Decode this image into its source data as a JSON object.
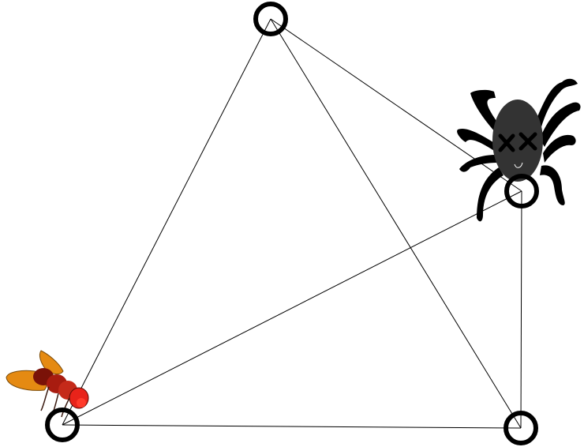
{
  "game": {
    "nodes": [
      {
        "id": "n0",
        "name": "node-top"
      },
      {
        "id": "n1",
        "name": "node-bottom-left"
      },
      {
        "id": "n2",
        "name": "node-bottom-right"
      },
      {
        "id": "n3",
        "name": "node-right"
      }
    ],
    "edges": [
      [
        "n0",
        "n1"
      ],
      [
        "n0",
        "n2"
      ],
      [
        "n0",
        "n3"
      ],
      [
        "n1",
        "n2"
      ],
      [
        "n1",
        "n3"
      ],
      [
        "n3",
        "n2"
      ]
    ],
    "pieces": {
      "fly": {
        "name": "fly-piece",
        "on_node": "n1",
        "icon": "fly-icon"
      },
      "spider": {
        "name": "spider-piece",
        "on_node": "n3",
        "icon": "spider-icon"
      }
    },
    "colors": {
      "edge": "#000000",
      "node_stroke": "#000000",
      "node_fill": "#ffffff",
      "spider_body": "#333333",
      "spider_legs": "#000000",
      "fly_body": "#cc2a1a",
      "fly_wing": "#e58a12"
    }
  }
}
